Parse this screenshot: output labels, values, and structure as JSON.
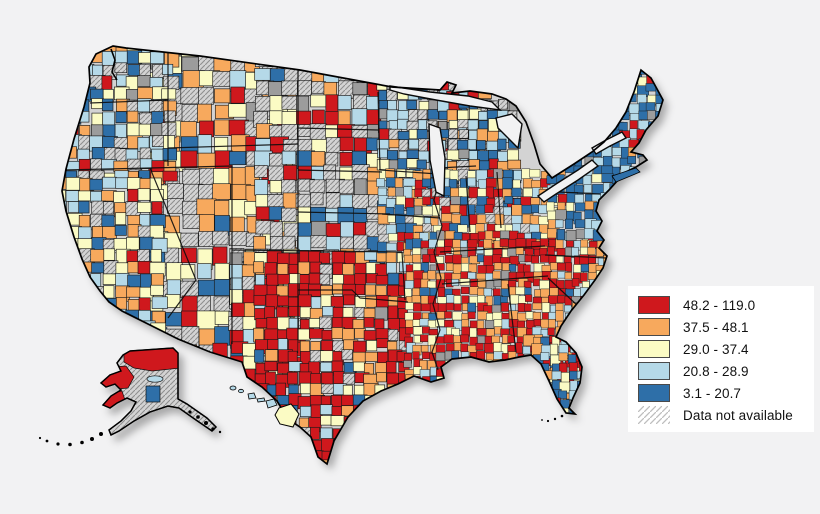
{
  "background_color": "#F2F2F3",
  "legend": {
    "items": [
      {
        "label": "48.2 - 119.0",
        "color": "#CF181D"
      },
      {
        "label": "37.5 - 48.1",
        "color": "#F7A95D"
      },
      {
        "label": "29.0 - 37.4",
        "color": "#FBFBC4"
      },
      {
        "label": "20.8 - 28.9",
        "color": "#B5D9E8"
      },
      {
        "label": "3.1 - 20.7",
        "color": "#2E6FA8"
      }
    ],
    "no_data": {
      "label": "Data not available",
      "pattern": "diagonal-hatch"
    }
  },
  "chart_data": {
    "type": "choropleth",
    "geography": "United States counties (contiguous US, Alaska, Hawaii)",
    "classes": [
      {
        "range": "48.2 - 119.0",
        "min": 48.2,
        "max": 119.0,
        "color": "#CF181D"
      },
      {
        "range": "37.5 - 48.1",
        "min": 37.5,
        "max": 48.1,
        "color": "#F7A95D"
      },
      {
        "range": "29.0 - 37.4",
        "min": 29.0,
        "max": 37.4,
        "color": "#FBFBC4"
      },
      {
        "range": "20.8 - 28.9",
        "min": 20.8,
        "max": 28.9,
        "color": "#B5D9E8"
      },
      {
        "range": "3.1 - 20.7",
        "min": 3.1,
        "max": 20.7,
        "color": "#2E6FA8"
      }
    ],
    "no_data_label": "Data not available",
    "legend_position": "right",
    "regional_pattern": {
      "southeast_and_south_central": "predominantly highest two classes (red/orange): OK, AR, LA, MS, AL, TN, KY, GA, east TX",
      "northeast_new_england": "predominantly lowest class (dark blue)",
      "great_plains_and_mountain_west": "large areas hatched (data not available) with scattered colored counties",
      "upper_midwest": "mostly low classes (blue shades) mixed with hatched counties",
      "west_coast": "mix of all classes",
      "florida": "mostly low-to-middle classes with some high-class counties in the north",
      "alaska": "mostly data not available, some highest-class boroughs in north and west",
      "hawaii": "low to middle classes"
    }
  },
  "map": {
    "landmasses": [
      "contiguous United States",
      "Alaska",
      "Hawaii"
    ]
  }
}
